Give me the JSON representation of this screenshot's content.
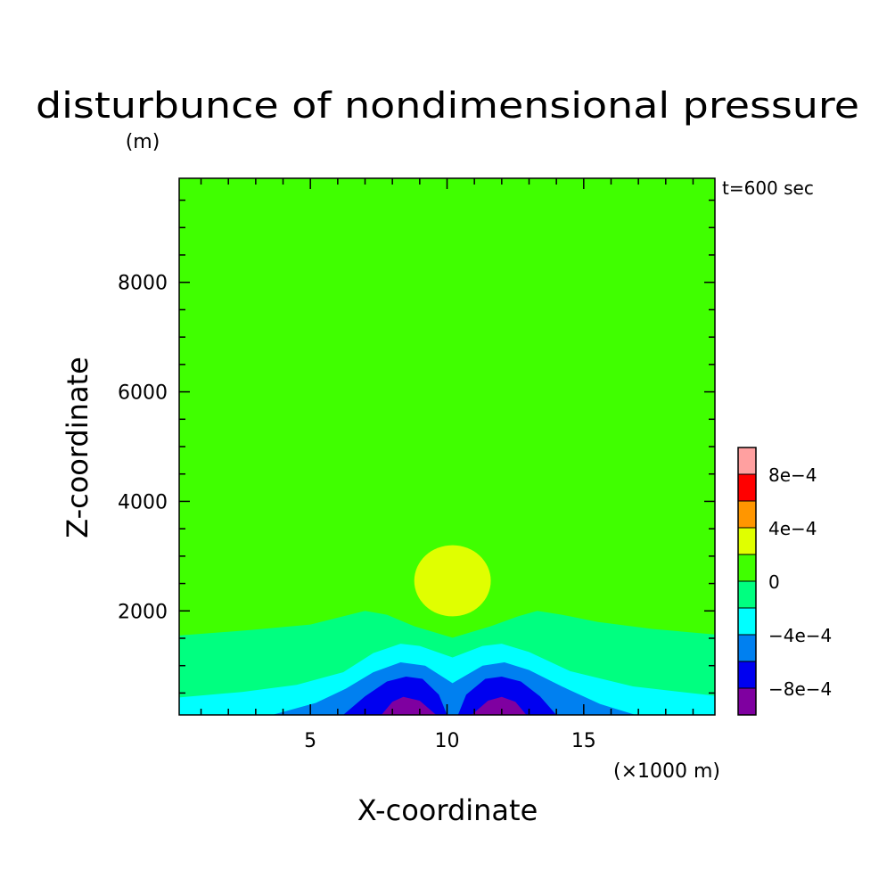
{
  "chart_data": {
    "type": "heatmap",
    "title": "disturbunce of nondimensional pressure",
    "subtitle": "(m)",
    "time_label": "t=600 sec",
    "xlabel": "X-coordinate",
    "xunit": "(×1000 m)",
    "ylabel": "Z-coordinate",
    "xlim": [
      0.2,
      19.8
    ],
    "ylim": [
      100,
      9900
    ],
    "x_ticks": [
      5,
      10,
      15
    ],
    "y_ticks": [
      2000,
      4000,
      6000,
      8000
    ],
    "colorbar": {
      "levels": [
        -0.001,
        -0.0008,
        -0.0006,
        -0.0004,
        -0.0002,
        0,
        0.0002,
        0.0004,
        0.0006,
        0.0008,
        0.001
      ],
      "colors": [
        "#7f00a0",
        "#0000f0",
        "#0080f0",
        "#00ffff",
        "#00ff80",
        "#40ff00",
        "#e0ff00",
        "#ff9600",
        "#ff0000",
        "#ffa0a0"
      ],
      "tick_labels": [
        {
          "text": "-8e-4",
          "value": -0.0008
        },
        {
          "text": "-4e-4",
          "value": -0.0004
        },
        {
          "text": "0",
          "value": 0
        },
        {
          "text": "4e-4",
          "value": 0.0004
        },
        {
          "text": "8e-4",
          "value": 0.0008
        }
      ]
    },
    "contour_regions": [
      {
        "level": "0 to 2e-4",
        "color": "#40ff00",
        "fill": "background"
      },
      {
        "level": "-2e-4 to 0",
        "color": "#00ff80",
        "boundary": [
          [
            0.2,
            1550
          ],
          [
            2.8,
            1650
          ],
          [
            5.0,
            1750
          ],
          [
            6.2,
            1900
          ],
          [
            7.0,
            2000
          ],
          [
            7.8,
            1930
          ],
          [
            8.8,
            1720
          ],
          [
            10.2,
            1510
          ],
          [
            11.6,
            1720
          ],
          [
            12.6,
            1900
          ],
          [
            13.3,
            2000
          ],
          [
            14.2,
            1930
          ],
          [
            15.5,
            1800
          ],
          [
            17.5,
            1670
          ],
          [
            19.8,
            1570
          ]
        ]
      },
      {
        "level": "-4e-4 to -2e-4",
        "color": "#00ffff",
        "boundary": [
          [
            0.2,
            420
          ],
          [
            2.5,
            520
          ],
          [
            4.5,
            650
          ],
          [
            6.2,
            880
          ],
          [
            7.3,
            1230
          ],
          [
            8.3,
            1400
          ],
          [
            9.0,
            1360
          ],
          [
            10.2,
            1150
          ],
          [
            11.3,
            1360
          ],
          [
            12.0,
            1400
          ],
          [
            13.0,
            1250
          ],
          [
            14.5,
            900
          ],
          [
            16.8,
            620
          ],
          [
            19.8,
            450
          ]
        ]
      },
      {
        "level": "-6e-4 to -4e-4",
        "color": "#0080f0",
        "boundary": [
          [
            3.6,
            100
          ],
          [
            5.2,
            320
          ],
          [
            6.3,
            580
          ],
          [
            7.3,
            880
          ],
          [
            8.3,
            1060
          ],
          [
            9.2,
            1000
          ],
          [
            10.2,
            680
          ],
          [
            11.3,
            1000
          ],
          [
            12.1,
            1060
          ],
          [
            13.0,
            920
          ],
          [
            14.2,
            620
          ],
          [
            15.6,
            300
          ],
          [
            16.9,
            100
          ]
        ]
      },
      {
        "level": "-8e-4 to -6e-4",
        "color": "#0000f0",
        "boundary": [
          [
            6.2,
            100
          ],
          [
            7.0,
            440
          ],
          [
            7.8,
            710
          ],
          [
            8.5,
            800
          ],
          [
            9.1,
            760
          ],
          [
            9.7,
            470
          ],
          [
            10.0,
            100
          ],
          [
            10.4,
            100
          ],
          [
            10.7,
            470
          ],
          [
            11.4,
            760
          ],
          [
            12.0,
            800
          ],
          [
            12.7,
            710
          ],
          [
            13.4,
            440
          ],
          [
            14.0,
            100
          ]
        ]
      },
      {
        "level": "< -8e-4",
        "color": "#7f00a0",
        "boundary": [
          [
            7.6,
            100
          ],
          [
            8.0,
            340
          ],
          [
            8.4,
            430
          ],
          [
            9.0,
            360
          ],
          [
            9.6,
            100
          ],
          [
            10.9,
            100
          ],
          [
            11.5,
            360
          ],
          [
            12.0,
            430
          ],
          [
            12.5,
            340
          ],
          [
            12.9,
            100
          ]
        ]
      },
      {
        "level": "2e-4 to 4e-4",
        "color": "#e0ff00",
        "shape": "blob",
        "center": [
          10.2,
          2550
        ],
        "rx": 1.4,
        "ztop": 3200,
        "zbottom": 1900
      }
    ]
  }
}
